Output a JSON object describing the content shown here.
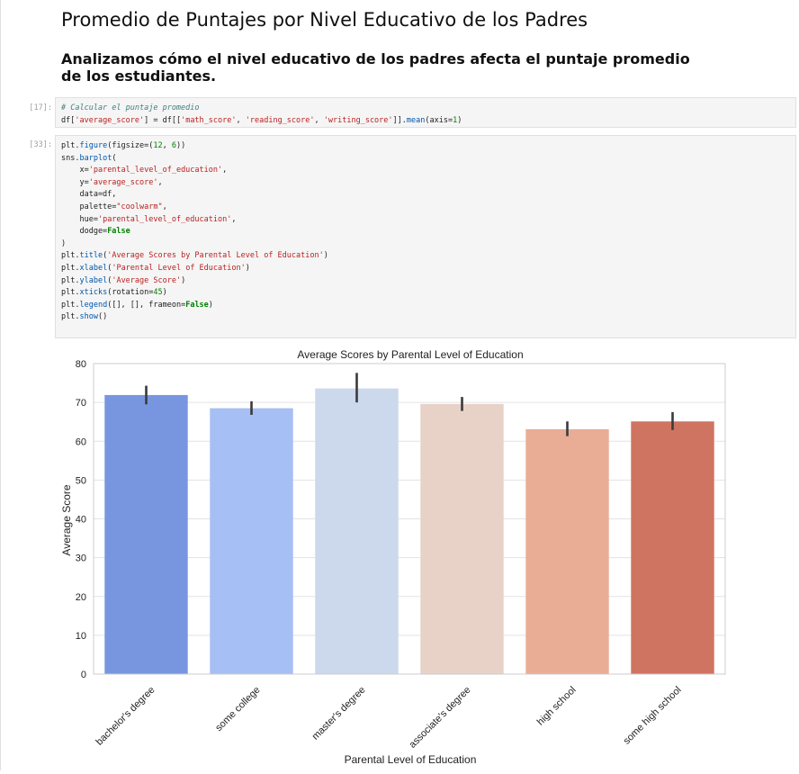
{
  "notebook": {
    "heading": "Promedio de Puntajes por Nivel Educativo de los Padres",
    "subheading": "Analizamos cómo el nivel educativo de los padres afecta el puntaje promedio de los estudiantes.",
    "cells": [
      {
        "prompt": "[17]:",
        "lines": [
          [
            {
              "t": "# Calcular el puntaje promedio",
              "c": "cm"
            }
          ],
          [
            {
              "t": "df["
            },
            {
              "t": "'average_score'",
              "c": "st"
            },
            {
              "t": "] = df[["
            },
            {
              "t": "'math_score'",
              "c": "st"
            },
            {
              "t": ", "
            },
            {
              "t": "'reading_score'",
              "c": "st"
            },
            {
              "t": ", "
            },
            {
              "t": "'writing_score'",
              "c": "st"
            },
            {
              "t": "]]."
            },
            {
              "t": "mean",
              "c": "fn"
            },
            {
              "t": "(axis="
            },
            {
              "t": "1",
              "c": "nm"
            },
            {
              "t": ")"
            }
          ]
        ]
      },
      {
        "prompt": "[33]:",
        "lines": [
          [
            {
              "t": "plt."
            },
            {
              "t": "figure",
              "c": "fn"
            },
            {
              "t": "(figsize=("
            },
            {
              "t": "12",
              "c": "nm"
            },
            {
              "t": ", "
            },
            {
              "t": "6",
              "c": "nm"
            },
            {
              "t": "))"
            }
          ],
          [
            {
              "t": "sns."
            },
            {
              "t": "barplot",
              "c": "fn"
            },
            {
              "t": "("
            }
          ],
          [
            {
              "t": "    x="
            },
            {
              "t": "'parental_level_of_education'",
              "c": "st"
            },
            {
              "t": ","
            }
          ],
          [
            {
              "t": "    y="
            },
            {
              "t": "'average_score'",
              "c": "st"
            },
            {
              "t": ","
            }
          ],
          [
            {
              "t": "    data=df,"
            }
          ],
          [
            {
              "t": "    palette="
            },
            {
              "t": "\"coolwarm\"",
              "c": "st"
            },
            {
              "t": ","
            }
          ],
          [
            {
              "t": "    hue="
            },
            {
              "t": "'parental_level_of_education'",
              "c": "st"
            },
            {
              "t": ","
            }
          ],
          [
            {
              "t": "    dodge="
            },
            {
              "t": "False",
              "c": "kw"
            }
          ],
          [
            {
              "t": ")"
            }
          ],
          [
            {
              "t": "plt."
            },
            {
              "t": "title",
              "c": "fn"
            },
            {
              "t": "("
            },
            {
              "t": "'Average Scores by Parental Level of Education'",
              "c": "st"
            },
            {
              "t": ")"
            }
          ],
          [
            {
              "t": "plt."
            },
            {
              "t": "xlabel",
              "c": "fn"
            },
            {
              "t": "("
            },
            {
              "t": "'Parental Level of Education'",
              "c": "st"
            },
            {
              "t": ")"
            }
          ],
          [
            {
              "t": "plt."
            },
            {
              "t": "ylabel",
              "c": "fn"
            },
            {
              "t": "("
            },
            {
              "t": "'Average Score'",
              "c": "st"
            },
            {
              "t": ")"
            }
          ],
          [
            {
              "t": "plt."
            },
            {
              "t": "xticks",
              "c": "fn"
            },
            {
              "t": "(rotation="
            },
            {
              "t": "45",
              "c": "nm"
            },
            {
              "t": ")"
            }
          ],
          [
            {
              "t": "plt."
            },
            {
              "t": "legend",
              "c": "fn"
            },
            {
              "t": "([], [], frameon="
            },
            {
              "t": "False",
              "c": "kw"
            },
            {
              "t": ")"
            }
          ],
          [
            {
              "t": "plt."
            },
            {
              "t": "show",
              "c": "fn"
            },
            {
              "t": "()"
            }
          ]
        ]
      }
    ]
  },
  "chart_data": {
    "type": "bar",
    "title": "Average Scores by Parental Level of Education",
    "xlabel": "Parental Level of Education",
    "ylabel": "Average Score",
    "categories": [
      "bachelor's degree",
      "some college",
      "master's degree",
      "associate's degree",
      "high school",
      "some high school"
    ],
    "values": [
      71.9,
      68.5,
      73.6,
      69.6,
      63.1,
      65.1
    ],
    "error_low": [
      69.5,
      66.8,
      70.0,
      67.8,
      61.3,
      62.9
    ],
    "error_high": [
      74.3,
      70.3,
      77.6,
      71.4,
      65.1,
      67.5
    ],
    "colors": [
      "#7896e0",
      "#a6bff4",
      "#ccd8ec",
      "#e8d2c8",
      "#e9ad96",
      "#d07462"
    ],
    "ylim": [
      0,
      80
    ],
    "yticks": [
      0,
      10,
      20,
      30,
      40,
      50,
      60,
      70,
      80
    ],
    "grid": true,
    "legend": "none",
    "xtick_rotation": 45
  }
}
